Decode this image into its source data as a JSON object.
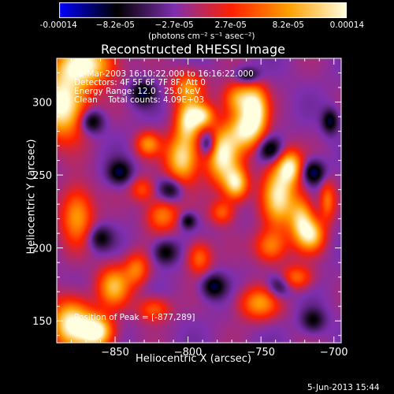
{
  "colorbar": {
    "ticks": [
      "-0.00014",
      "−8.2e-05",
      "−2.7e-05",
      "2.7e-05",
      "8.2e-05",
      "0.00014"
    ],
    "unit_label": "(photons cm⁻² s⁻¹ asec⁻²)"
  },
  "chart_data": {
    "type": "heatmap",
    "title": "Reconstructed RHESSI Image",
    "xlabel": "Heliocentric X (arcsec)",
    "ylabel": "Heliocentric Y (arcsec)",
    "xlim": [
      -890,
      -695
    ],
    "ylim": [
      135,
      330
    ],
    "x_ticks": [
      -850,
      -800,
      -750,
      -700
    ],
    "y_ticks": [
      150,
      200,
      250,
      300
    ],
    "x_tick_labels": [
      "−850",
      "−800",
      "−750",
      "−700"
    ],
    "y_tick_labels": [
      "150",
      "200",
      "250",
      "300"
    ],
    "colorscale": [
      "#0000ff",
      "#000000",
      "#7f2faf",
      "#ff2000",
      "#ffa000",
      "#ffffe0"
    ],
    "value_range": [
      -0.00014,
      0.00014
    ],
    "annotations": {
      "time": "2-Mar-2003 16:10:22.000 to 16:16:22.000",
      "detectors": "Detectors: 4F 5F 6F 7F 8F, Att 0",
      "energy": "Energy Range: 12.0 - 25.0 keV",
      "method": "Clean    Total counts: 4.09E+03",
      "peak": "Position of Peak = [-877,289]"
    },
    "peak_position": [
      -877,
      289
    ],
    "total_counts": 4090,
    "energy_range_kev": [
      12.0,
      25.0
    ]
  },
  "footer": {
    "date": "5-Jun-2013 15:44"
  }
}
